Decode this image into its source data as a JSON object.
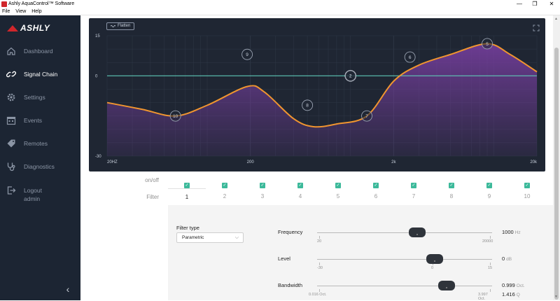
{
  "window": {
    "title": "Ashly AquaControl™ Software",
    "menu": [
      "File",
      "View",
      "Help"
    ],
    "controls": [
      "—",
      "❐",
      "✕"
    ]
  },
  "sidebar": {
    "brand": "ASHLY",
    "items": [
      {
        "label": "Dashboard",
        "icon": "home-icon",
        "active": false
      },
      {
        "label": "Signal Chain",
        "icon": "signal-chain-icon",
        "active": true
      },
      {
        "label": "Settings",
        "icon": "gear-icon",
        "active": false
      },
      {
        "label": "Events",
        "icon": "calendar-icon",
        "active": false
      },
      {
        "label": "Remotes",
        "icon": "tag-icon",
        "active": false
      },
      {
        "label": "Diagnostics",
        "icon": "stethoscope-icon",
        "active": false
      },
      {
        "label": "Logout admin",
        "icon": "logout-icon",
        "active": false
      }
    ],
    "collapse_glyph": "‹"
  },
  "graph": {
    "flatten_label": "Flatten",
    "y_ticks": [
      "15",
      "0",
      "-30"
    ],
    "x_ticks": [
      "20HZ",
      "200",
      "2k",
      "20k"
    ],
    "nodes": [
      {
        "label": "1",
        "freq": 1000,
        "gain": 0
      },
      {
        "label": "2",
        "freq": 1000,
        "gain": 0
      },
      {
        "label": "5",
        "freq": 9000,
        "gain": 12
      },
      {
        "label": "6",
        "freq": 2600,
        "gain": 7
      },
      {
        "label": "7",
        "freq": 1300,
        "gain": -15
      },
      {
        "label": "8",
        "freq": 500,
        "gain": -11
      },
      {
        "label": "9",
        "freq": 190,
        "gain": 8
      },
      {
        "label": "10",
        "freq": 60,
        "gain": -15
      }
    ],
    "colors": {
      "background": "#1f2633",
      "curve": "#f0952f",
      "fill": "#7a3fa3",
      "zero_line": "#5fc7b5",
      "grid": "#2f3847"
    }
  },
  "filters": {
    "onoff_label": "on/off",
    "filter_label": "Filter",
    "tabs": [
      "1",
      "2",
      "3",
      "4",
      "5",
      "6",
      "7",
      "8",
      "9",
      "10"
    ],
    "checkmark": "✓",
    "active_tab": "1"
  },
  "panel": {
    "filter_type_label": "Filter type",
    "filter_type_value": "Parametric",
    "params": [
      {
        "label": "Frequency",
        "min": "20",
        "max": "20000",
        "value": "1000",
        "unit": "Hz",
        "position": 0.57
      },
      {
        "label": "Level",
        "min": "-30",
        "mid": "0",
        "max": "15",
        "value": "0",
        "unit": "dB",
        "position": 0.67
      },
      {
        "label": "Bandwidth",
        "min": "0.016 Oct.",
        "max": "3.997 Oct.",
        "value": "0.999",
        "unit": "Oct.",
        "value2": "1.416",
        "unit2": "Q",
        "position": 0.74
      }
    ]
  }
}
